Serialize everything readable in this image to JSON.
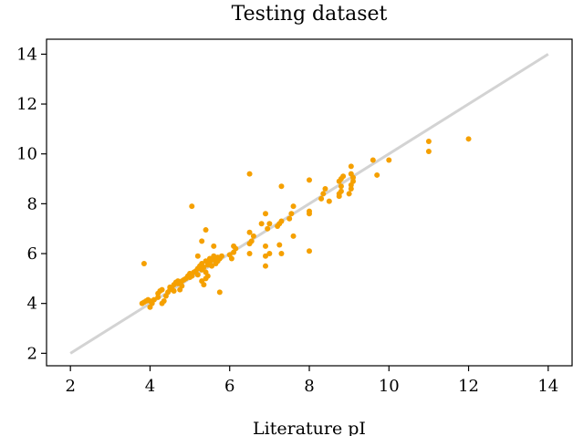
{
  "chart_data": {
    "type": "scatter",
    "title": "Testing dataset",
    "xlabel": "Literature pI",
    "ylabel": "",
    "xlim": [
      1.4,
      14.6
    ],
    "ylim": [
      1.5,
      14.6
    ],
    "xticks": [
      "2",
      "4",
      "6",
      "8",
      "10",
      "12",
      "14"
    ],
    "yticks": [
      "2",
      "4",
      "6",
      "8",
      "10",
      "12",
      "14"
    ],
    "grid": false,
    "colors": {
      "points": "#f5a000",
      "reference_line": "#d3d3d3"
    },
    "reference_line": {
      "x": [
        2,
        14
      ],
      "y": [
        2,
        14
      ]
    },
    "points": [
      [
        3.8,
        4.0
      ],
      [
        3.85,
        4.05
      ],
      [
        3.9,
        4.1
      ],
      [
        3.95,
        4.15
      ],
      [
        4.0,
        3.85
      ],
      [
        4.0,
        4.1
      ],
      [
        3.85,
        5.6
      ],
      [
        4.05,
        4.0
      ],
      [
        4.1,
        4.15
      ],
      [
        4.2,
        4.25
      ],
      [
        4.2,
        4.4
      ],
      [
        4.25,
        4.5
      ],
      [
        4.3,
        4.55
      ],
      [
        4.3,
        4.0
      ],
      [
        4.35,
        4.1
      ],
      [
        4.4,
        4.3
      ],
      [
        4.45,
        4.45
      ],
      [
        4.5,
        4.55
      ],
      [
        4.5,
        4.65
      ],
      [
        4.55,
        4.6
      ],
      [
        4.6,
        4.75
      ],
      [
        4.6,
        4.5
      ],
      [
        4.65,
        4.85
      ],
      [
        4.7,
        4.8
      ],
      [
        4.7,
        4.9
      ],
      [
        4.75,
        4.55
      ],
      [
        4.8,
        4.9
      ],
      [
        4.8,
        4.7
      ],
      [
        4.85,
        4.95
      ],
      [
        4.9,
        5.0
      ],
      [
        4.95,
        5.1
      ],
      [
        5.0,
        5.2
      ],
      [
        5.0,
        5.05
      ],
      [
        5.05,
        5.1
      ],
      [
        5.05,
        7.9
      ],
      [
        5.1,
        5.25
      ],
      [
        5.15,
        5.3
      ],
      [
        5.2,
        5.4
      ],
      [
        5.2,
        5.15
      ],
      [
        5.25,
        5.5
      ],
      [
        5.3,
        5.35
      ],
      [
        5.3,
        5.6
      ],
      [
        5.35,
        5.45
      ],
      [
        5.4,
        5.7
      ],
      [
        5.4,
        5.25
      ],
      [
        5.45,
        5.55
      ],
      [
        5.5,
        5.65
      ],
      [
        5.5,
        5.8
      ],
      [
        5.55,
        5.5
      ],
      [
        5.6,
        5.75
      ],
      [
        5.6,
        5.9
      ],
      [
        5.65,
        5.6
      ],
      [
        5.7,
        5.85
      ],
      [
        5.7,
        5.7
      ],
      [
        5.75,
        5.8
      ],
      [
        5.8,
        5.9
      ],
      [
        5.3,
        6.5
      ],
      [
        5.4,
        6.95
      ],
      [
        5.2,
        5.9
      ],
      [
        5.6,
        6.3
      ],
      [
        5.75,
        4.45
      ],
      [
        5.35,
        4.75
      ],
      [
        5.3,
        4.9
      ],
      [
        5.4,
        5.0
      ],
      [
        5.45,
        5.1
      ],
      [
        6.0,
        5.95
      ],
      [
        6.05,
        5.8
      ],
      [
        6.1,
        6.05
      ],
      [
        6.15,
        6.2
      ],
      [
        6.1,
        6.3
      ],
      [
        6.5,
        6.0
      ],
      [
        6.5,
        6.4
      ],
      [
        6.55,
        6.5
      ],
      [
        6.6,
        6.7
      ],
      [
        6.5,
        6.85
      ],
      [
        6.5,
        9.2
      ],
      [
        6.8,
        7.2
      ],
      [
        6.9,
        7.6
      ],
      [
        6.95,
        7.0
      ],
      [
        6.9,
        6.3
      ],
      [
        7.0,
        6.0
      ],
      [
        6.9,
        5.9
      ],
      [
        6.9,
        5.5
      ],
      [
        7.0,
        7.2
      ],
      [
        7.2,
        7.1
      ],
      [
        7.25,
        7.2
      ],
      [
        7.3,
        7.3
      ],
      [
        7.3,
        8.7
      ],
      [
        7.25,
        6.35
      ],
      [
        7.3,
        6.0
      ],
      [
        7.5,
        7.4
      ],
      [
        7.55,
        7.6
      ],
      [
        7.6,
        7.9
      ],
      [
        7.6,
        6.7
      ],
      [
        8.0,
        7.6
      ],
      [
        8.0,
        7.7
      ],
      [
        8.0,
        8.95
      ],
      [
        8.0,
        6.1
      ],
      [
        8.3,
        8.2
      ],
      [
        8.35,
        8.4
      ],
      [
        8.4,
        8.6
      ],
      [
        8.5,
        8.1
      ],
      [
        8.75,
        8.3
      ],
      [
        8.75,
        8.4
      ],
      [
        8.8,
        8.5
      ],
      [
        8.8,
        8.7
      ],
      [
        8.75,
        8.9
      ],
      [
        8.8,
        9.0
      ],
      [
        8.85,
        9.1
      ],
      [
        9.0,
        8.4
      ],
      [
        9.05,
        8.6
      ],
      [
        9.05,
        8.75
      ],
      [
        9.1,
        8.9
      ],
      [
        9.1,
        9.05
      ],
      [
        9.05,
        9.2
      ],
      [
        9.05,
        9.5
      ],
      [
        9.6,
        9.75
      ],
      [
        9.7,
        9.15
      ],
      [
        10.0,
        9.75
      ],
      [
        11.0,
        10.1
      ],
      [
        11.0,
        10.5
      ],
      [
        12.0,
        10.6
      ]
    ]
  }
}
